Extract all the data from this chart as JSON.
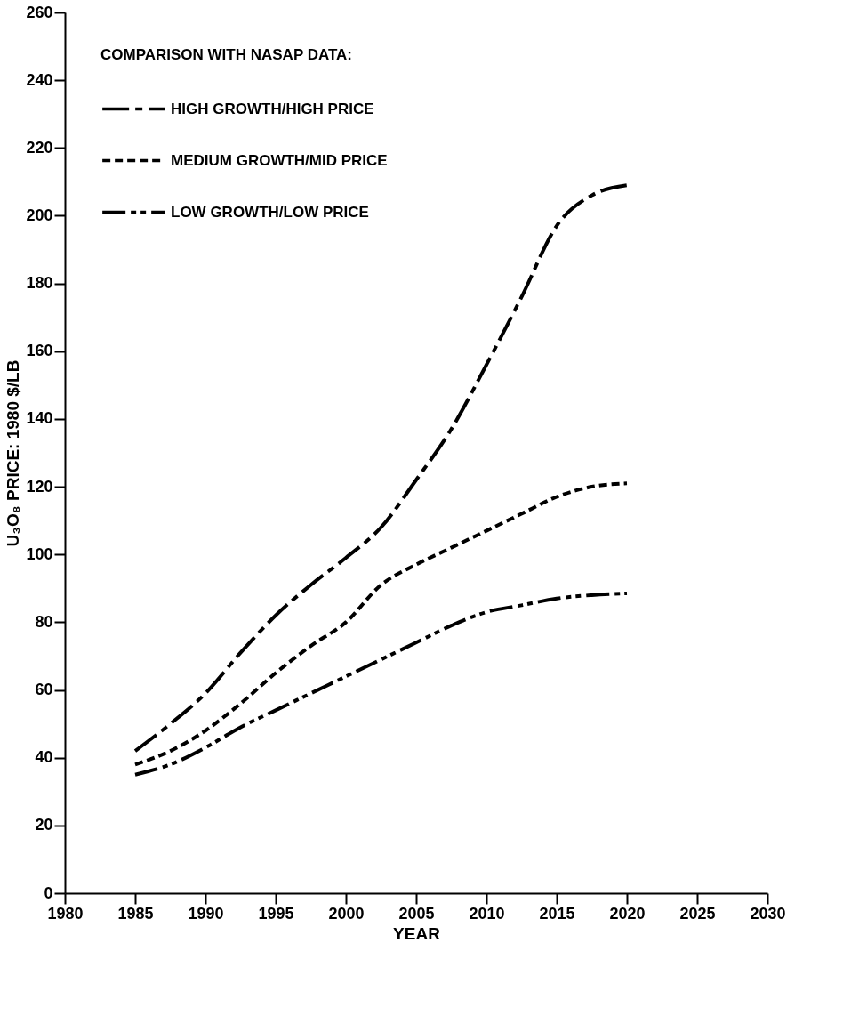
{
  "chart_data": {
    "type": "line",
    "xlabel": "YEAR",
    "ylabel": "U₃O₈ PRICE:  1980 $/LB",
    "legend_title": "COMPARISON WITH NASAP DATA:",
    "x": [
      1985,
      1987.5,
      1990,
      1992.5,
      1995,
      1997.5,
      2000,
      2002.5,
      2005,
      2007.5,
      2010,
      2012.5,
      2015,
      2017.5,
      2020
    ],
    "series": [
      {
        "name": "HIGH GROWTH/HIGH PRICE",
        "color": "#000000",
        "line_style": "dashed",
        "values": [
          42,
          50,
          59,
          71,
          82,
          91,
          99,
          108,
          122,
          137,
          156,
          176,
          197,
          206,
          209
        ]
      },
      {
        "name": "MEDIUM GROWTH/MID PRICE",
        "color": "#000000",
        "line_style": "dashed",
        "values": [
          38,
          42,
          48,
          56,
          65,
          73,
          80,
          91,
          97,
          102,
          107,
          112,
          117,
          120,
          121
        ]
      },
      {
        "name": "LOW GROWTH/LOW PRICE",
        "color": "#000000",
        "line_style": "dashed",
        "values": [
          35,
          38,
          43,
          49,
          54,
          59,
          64,
          69,
          74,
          79,
          83,
          85,
          87,
          88,
          88.5
        ]
      }
    ],
    "xlim": [
      1980,
      2030
    ],
    "xticks": [
      1980,
      1985,
      1990,
      1995,
      2000,
      2005,
      2010,
      2015,
      2020,
      2025,
      2030
    ],
    "ylim": [
      0,
      260
    ],
    "yticks": [
      0,
      20,
      40,
      60,
      80,
      100,
      120,
      140,
      160,
      180,
      200,
      220,
      240,
      260
    ],
    "grid": false,
    "legend": "top left",
    "marker": "none"
  }
}
